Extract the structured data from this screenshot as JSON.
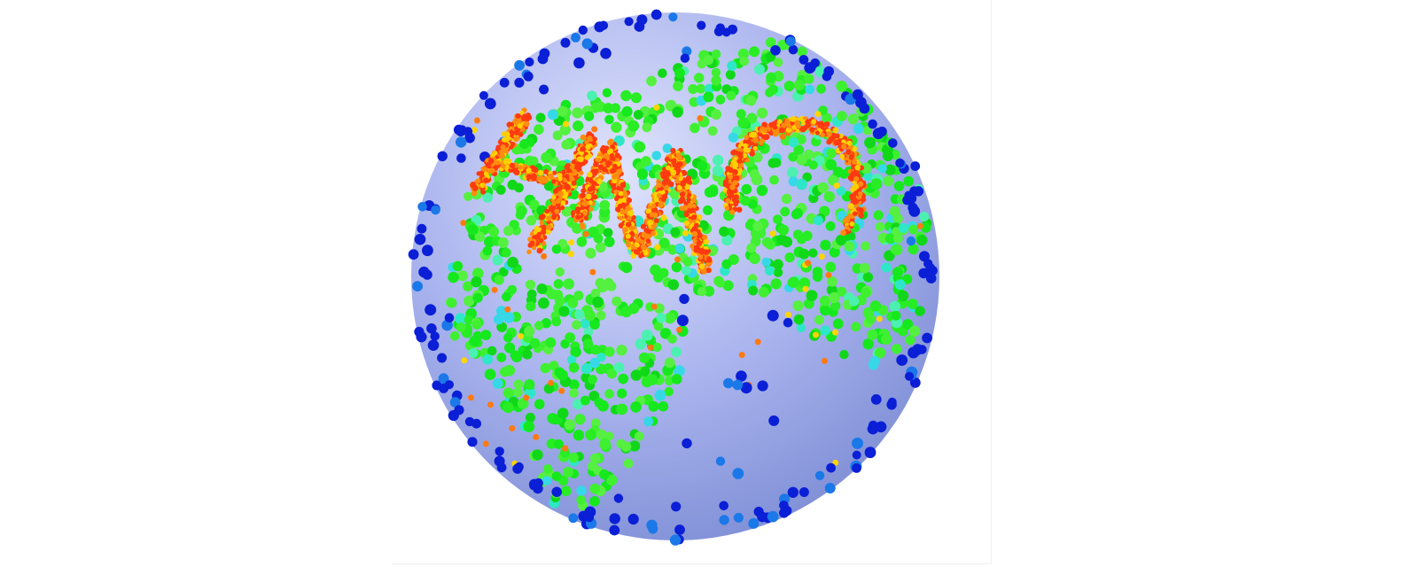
{
  "figure": {
    "description_colors": {
      "background": "#ffffff",
      "sphere_fill": "#9aa6e8",
      "sphere_highlight": "#d6dcf8",
      "ocean_dot": "#0a1fd6",
      "land_low": "#12e81a",
      "land_mid": "#2ee6c8",
      "text_high": "#ff3a10",
      "text_mid": "#ffb000"
    },
    "letters": "HMC"
  }
}
